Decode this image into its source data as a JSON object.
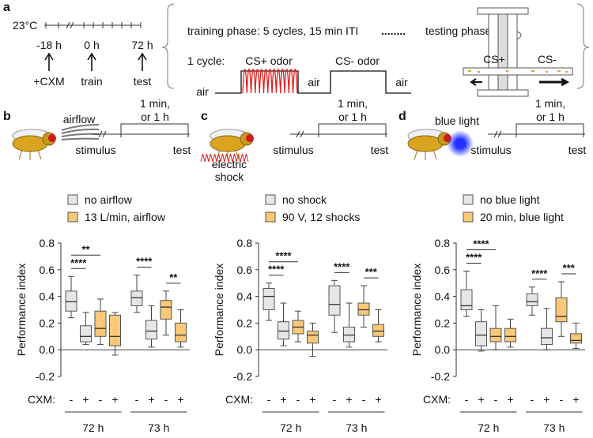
{
  "panel_a": {
    "label": "a",
    "temperature": "23°C",
    "timepoints": [
      "-18 h",
      "0 h",
      "72 h"
    ],
    "events": [
      "+CXM",
      "train",
      "test"
    ],
    "training": "training phase: 5 cycles, 15 min ITI",
    "dots": "........",
    "testing": "testing phase",
    "cycle": "1 cycle:",
    "cs_plus_odor": "CS+ odor",
    "cs_minus_odor": "CS- odor",
    "air": [
      "air",
      "air",
      "air"
    ],
    "cs_plus": "CS+",
    "cs_minus": "CS-"
  },
  "chart_data": [
    {
      "type": "box",
      "panel": "b",
      "stimulus_label": [
        "airflow"
      ],
      "delay": [
        "1 min,",
        "or 1 h"
      ],
      "timeline": [
        "stimulus",
        "test"
      ],
      "ylabel": "Performance index",
      "xlabel": "CXM:",
      "categories": [
        "-",
        "+",
        "-",
        "+",
        "-",
        "+",
        "-",
        "+"
      ],
      "groups": [
        "72 h",
        "73 h"
      ],
      "ylim": [
        -0.2,
        0.8
      ],
      "yticks": [
        -0.2,
        {
          "value": 0,
          "label": "0.0"
        },
        0.2,
        0.4,
        0.6,
        0.8
      ],
      "series": [
        {
          "name": "no airflow",
          "color": "#e6e6e6",
          "values": [
            {
              "min": 0.24,
              "q1": 0.29,
              "median": 0.36,
              "q3": 0.44,
              "max": 0.55
            },
            {
              "min": 0.04,
              "q1": 0.06,
              "median": 0.1,
              "q3": 0.18,
              "max": 0.28
            },
            null,
            null,
            {
              "min": 0.28,
              "q1": 0.33,
              "median": 0.39,
              "q3": 0.44,
              "max": 0.56
            },
            {
              "min": 0.02,
              "q1": 0.08,
              "median": 0.14,
              "q3": 0.22,
              "max": 0.33
            },
            null,
            null
          ]
        },
        {
          "name": "13 L/min, airflow",
          "color": "#f9c878",
          "values": [
            null,
            null,
            {
              "min": 0.04,
              "q1": 0.1,
              "median": 0.16,
              "q3": 0.29,
              "max": 0.38
            },
            {
              "min": -0.04,
              "q1": 0.03,
              "median": 0.1,
              "q3": 0.26,
              "max": 0.28
            },
            null,
            null,
            {
              "min": 0.11,
              "q1": 0.23,
              "median": 0.32,
              "q3": 0.37,
              "max": 0.44
            },
            {
              "min": 0.02,
              "q1": 0.06,
              "median": 0.11,
              "q3": 0.2,
              "max": 0.3
            }
          ]
        }
      ],
      "annotations": [
        {
          "text": "****",
          "between": [
            0,
            1
          ]
        },
        {
          "text": "**",
          "between": [
            0,
            2
          ]
        },
        {
          "text": "****",
          "between": [
            4,
            5
          ]
        },
        {
          "text": "**",
          "between": [
            6,
            7
          ]
        }
      ]
    },
    {
      "type": "box",
      "panel": "c",
      "stimulus_label": [
        "electric",
        "shock"
      ],
      "delay": [
        "1 min,",
        "or 1 h"
      ],
      "timeline": [
        "stimulus",
        "test"
      ],
      "ylabel": "Performance index",
      "xlabel": "CXM:",
      "categories": [
        "-",
        "+",
        "-",
        "+",
        "-",
        "+",
        "-",
        "+"
      ],
      "groups": [
        "72 h",
        "73 h"
      ],
      "ylim": [
        -0.2,
        0.8
      ],
      "yticks": [
        -0.2,
        {
          "value": 0,
          "label": "0.0"
        },
        0.2,
        0.4,
        0.6,
        0.8
      ],
      "series": [
        {
          "name": "no shock",
          "color": "#e6e6e6",
          "values": [
            {
              "min": 0.22,
              "q1": 0.3,
              "median": 0.4,
              "q3": 0.46,
              "max": 0.5
            },
            {
              "min": 0.03,
              "q1": 0.08,
              "median": 0.14,
              "q3": 0.21,
              "max": 0.35
            },
            null,
            null,
            {
              "min": 0.13,
              "q1": 0.26,
              "median": 0.34,
              "q3": 0.48,
              "max": 0.52
            },
            {
              "min": 0.02,
              "q1": 0.06,
              "median": 0.11,
              "q3": 0.17,
              "max": 0.35
            },
            null,
            null
          ]
        },
        {
          "name": "90 V, 12 shocks",
          "color": "#f9c878",
          "values": [
            null,
            null,
            {
              "min": 0.06,
              "q1": 0.12,
              "median": 0.17,
              "q3": 0.22,
              "max": 0.29
            },
            {
              "min": -0.05,
              "q1": 0.05,
              "median": 0.11,
              "q3": 0.14,
              "max": 0.2
            },
            null,
            null,
            {
              "min": 0.17,
              "q1": 0.26,
              "median": 0.3,
              "q3": 0.35,
              "max": 0.48
            },
            {
              "min": 0.06,
              "q1": 0.1,
              "median": 0.14,
              "q3": 0.19,
              "max": 0.3
            }
          ]
        }
      ],
      "annotations": [
        {
          "text": "****",
          "between": [
            0,
            1
          ]
        },
        {
          "text": "****",
          "between": [
            0,
            2
          ]
        },
        {
          "text": "****",
          "between": [
            4,
            5
          ]
        },
        {
          "text": "***",
          "between": [
            6,
            7
          ]
        }
      ]
    },
    {
      "type": "box",
      "panel": "d",
      "stimulus_label": [
        "blue light"
      ],
      "delay": [
        "1 min,",
        "or 1 h"
      ],
      "timeline": [
        "stimulus",
        "test"
      ],
      "ylabel": "Performance index",
      "xlabel": "CXM:",
      "categories": [
        "-",
        "+",
        "-",
        "+",
        "-",
        "+",
        "-",
        "+"
      ],
      "groups": [
        "72 h",
        "73 h"
      ],
      "ylim": [
        -0.2,
        0.8
      ],
      "yticks": [
        -0.2,
        {
          "value": 0,
          "label": "0.0"
        },
        0.2,
        0.4,
        0.6,
        0.8
      ],
      "series": [
        {
          "name": "no blue light",
          "color": "#e6e6e6",
          "values": [
            {
              "min": 0.25,
              "q1": 0.3,
              "median": 0.33,
              "q3": 0.45,
              "max": 0.59
            },
            {
              "min": -0.01,
              "q1": 0.03,
              "median": 0.11,
              "q3": 0.21,
              "max": 0.3
            },
            null,
            null,
            {
              "min": 0.26,
              "q1": 0.33,
              "median": 0.36,
              "q3": 0.42,
              "max": 0.47
            },
            {
              "min": 0.0,
              "q1": 0.04,
              "median": 0.09,
              "q3": 0.16,
              "max": 0.31
            },
            null,
            null
          ]
        },
        {
          "name": "20 min, blue light",
          "color": "#f9c878",
          "values": [
            null,
            null,
            {
              "min": 0.0,
              "q1": 0.06,
              "median": 0.1,
              "q3": 0.16,
              "max": 0.33
            },
            {
              "min": 0.02,
              "q1": 0.06,
              "median": 0.1,
              "q3": 0.16,
              "max": 0.23
            },
            null,
            null,
            {
              "min": 0.1,
              "q1": 0.21,
              "median": 0.25,
              "q3": 0.39,
              "max": 0.51
            },
            {
              "min": 0.01,
              "q1": 0.05,
              "median": 0.07,
              "q3": 0.12,
              "max": 0.2
            }
          ]
        }
      ],
      "annotations": [
        {
          "text": "****",
          "between": [
            0,
            1
          ]
        },
        {
          "text": "****",
          "between": [
            0,
            2
          ]
        },
        {
          "text": "****",
          "between": [
            4,
            5
          ]
        },
        {
          "text": "***",
          "between": [
            6,
            7
          ]
        }
      ]
    }
  ]
}
